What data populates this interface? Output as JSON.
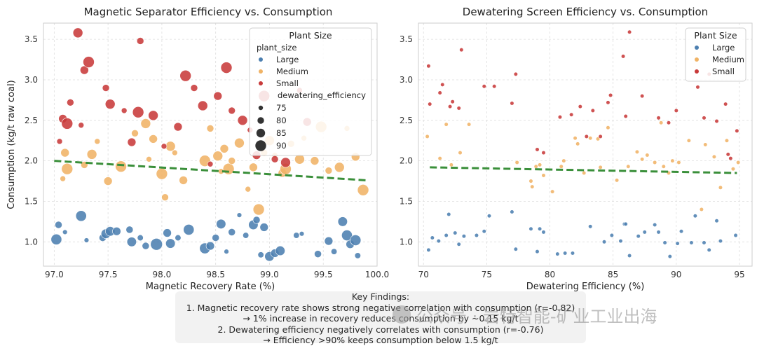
{
  "chart_data": [
    {
      "type": "scatter",
      "title": "Magnetic Separator Efficiency vs. Consumption",
      "xlabel": "Magnetic Recovery Rate (%)",
      "ylabel": "Consumption (kg/t raw coal)",
      "xlim": [
        96.9,
        100.0
      ],
      "ylim": [
        0.7,
        3.7
      ],
      "xticks": [
        "97.0",
        "97.5",
        "98.0",
        "98.5",
        "99.0",
        "99.5",
        "100.0"
      ],
      "yticks": [
        "1.0",
        "1.5",
        "2.0",
        "2.5",
        "3.0",
        "3.5"
      ],
      "grid": true,
      "trendline": {
        "x": [
          97.0,
          99.9
        ],
        "y": [
          2.0,
          1.76
        ],
        "color": "#3a8f3a"
      },
      "legend": {
        "title": "Plant Size",
        "hue_title": "plant_size",
        "hue_items": [
          "Large",
          "Medium",
          "Small"
        ],
        "size_title": "dewatering_efficiency",
        "size_items": [
          "75",
          "80",
          "85",
          "90"
        ],
        "placement": "upper-right"
      },
      "series": [
        {
          "name": "Large",
          "color": "#4c7fb0",
          "x": [
            97.02,
            97.04,
            97.1,
            97.25,
            97.3,
            97.45,
            97.48,
            97.52,
            97.58,
            97.7,
            97.72,
            97.8,
            97.85,
            97.95,
            98.05,
            98.08,
            98.15,
            98.25,
            98.4,
            98.45,
            98.5,
            98.55,
            98.6,
            98.65,
            98.72,
            98.78,
            98.85,
            98.88,
            98.92,
            98.95,
            99.0,
            99.05,
            99.1,
            99.25,
            99.3,
            99.45,
            99.55,
            99.6,
            99.68,
            99.72,
            99.75,
            99.8,
            99.82
          ],
          "y": [
            1.03,
            1.21,
            1.12,
            1.32,
            1.02,
            1.05,
            1.1,
            1.13,
            1.13,
            1.15,
            1.0,
            1.05,
            0.95,
            0.97,
            1.11,
            0.98,
            1.05,
            1.15,
            0.92,
            0.95,
            1.05,
            1.22,
            0.88,
            1.12,
            1.33,
            1.08,
            1.21,
            1.27,
            0.84,
            1.18,
            0.82,
            0.86,
            0.89,
            1.08,
            1.1,
            0.85,
            1.01,
            0.88,
            1.25,
            1.08,
            0.97,
            1.02,
            0.83
          ],
          "size": [
            86,
            80,
            76,
            86,
            76,
            80,
            84,
            84,
            82,
            80,
            84,
            78,
            80,
            88,
            82,
            84,
            78,
            86,
            86,
            82,
            80,
            84,
            76,
            80,
            76,
            78,
            84,
            80,
            78,
            82,
            84,
            82,
            84,
            78,
            76,
            80,
            82,
            78,
            84,
            86,
            82,
            86,
            78
          ]
        },
        {
          "name": "Medium",
          "color": "#f0b366",
          "x": [
            97.08,
            97.1,
            97.12,
            97.28,
            97.35,
            97.4,
            97.5,
            97.62,
            97.75,
            97.85,
            97.88,
            97.92,
            98.0,
            98.03,
            98.08,
            98.12,
            98.2,
            98.4,
            98.45,
            98.52,
            98.55,
            98.58,
            98.62,
            98.65,
            98.72,
            98.8,
            98.85,
            98.9,
            98.95,
            99.0,
            99.05,
            99.12,
            99.15,
            99.2,
            99.28,
            99.32,
            99.42,
            99.48,
            99.55,
            99.65,
            99.72,
            99.8,
            99.87
          ],
          "y": [
            1.78,
            2.1,
            1.9,
            1.95,
            2.08,
            2.24,
            1.75,
            1.93,
            2.34,
            2.46,
            2.02,
            2.27,
            1.84,
            1.55,
            2.18,
            2.1,
            1.76,
            2.0,
            2.4,
            2.06,
            1.87,
            2.15,
            1.9,
            2.0,
            2.22,
            1.65,
            1.92,
            1.4,
            2.1,
            2.25,
            2.07,
            1.85,
            1.9,
            2.21,
            2.02,
            2.28,
            2.0,
            2.42,
            1.88,
            1.92,
            2.4,
            2.05,
            1.64
          ]
        },
        {
          "name": "Small",
          "color": "#c83a3a",
          "x": [
            97.05,
            97.08,
            97.12,
            97.15,
            97.22,
            97.25,
            97.28,
            97.32,
            97.48,
            97.52,
            97.65,
            97.72,
            97.78,
            97.8,
            97.92,
            98.02,
            98.15,
            98.22,
            98.3,
            98.38,
            98.45,
            98.52,
            98.6,
            98.65,
            98.75,
            98.82,
            98.88,
            98.95,
            99.05,
            99.15,
            99.28,
            99.35
          ],
          "y": [
            2.24,
            2.52,
            2.46,
            2.72,
            3.58,
            2.44,
            3.12,
            3.22,
            2.9,
            2.7,
            2.62,
            2.23,
            2.6,
            3.48,
            2.56,
            2.18,
            2.42,
            3.05,
            2.9,
            2.68,
            1.96,
            2.8,
            3.15,
            2.62,
            2.5,
            2.38,
            2.07,
            2.8,
            2.02,
            1.98,
            2.87,
            2.48
          ]
        }
      ]
    },
    {
      "type": "scatter",
      "title": "Dewatering Screen Efficiency vs. Consumption",
      "xlabel": "Dewatering Efficiency (%)",
      "ylabel": "",
      "xlim": [
        69.6,
        96.0
      ],
      "ylim": [
        0.7,
        3.7
      ],
      "xticks": [
        "70",
        "75",
        "80",
        "85",
        "90",
        "95"
      ],
      "yticks": [
        "1.0",
        "1.5",
        "2.0",
        "2.5",
        "3.0",
        "3.5"
      ],
      "grid": true,
      "trendline": {
        "x": [
          70.5,
          94.8
        ],
        "y": [
          1.92,
          1.85
        ],
        "color": "#3a8f3a"
      },
      "legend": {
        "title": "Plant Size",
        "hue_items": [
          "Large",
          "Medium",
          "Small"
        ],
        "placement": "upper-right"
      },
      "series": [
        {
          "name": "Large",
          "color": "#4c7fb0",
          "x": [
            70.4,
            70.7,
            71.2,
            71.8,
            72.0,
            72.5,
            72.8,
            73.2,
            74.2,
            74.8,
            75.2,
            77.0,
            77.3,
            78.5,
            79.0,
            79.2,
            79.5,
            80.6,
            81.2,
            81.8,
            83.2,
            84.3,
            84.9,
            85.6,
            85.9,
            86.0,
            86.3,
            87.0,
            87.5,
            88.3,
            88.6,
            89.1,
            89.5,
            90.1,
            90.4,
            91.2,
            91.5,
            92.2,
            92.6,
            93.2,
            93.5,
            94.7
          ],
          "y": [
            0.9,
            1.05,
            1.01,
            1.08,
            1.34,
            1.11,
            0.97,
            1.07,
            1.08,
            1.13,
            1.32,
            1.37,
            0.91,
            1.16,
            0.88,
            1.16,
            1.12,
            0.85,
            0.86,
            0.86,
            1.19,
            1.0,
            1.08,
            1.01,
            1.22,
            1.22,
            0.83,
            1.07,
            1.12,
            1.21,
            1.12,
            0.99,
            0.82,
            0.98,
            1.13,
            0.99,
            1.32,
            0.99,
            0.9,
            1.26,
            1.01,
            1.08
          ]
        },
        {
          "name": "Medium",
          "color": "#f0b366",
          "x": [
            70.3,
            71.3,
            71.8,
            72.2,
            72.9,
            73.6,
            77.4,
            78.5,
            78.6,
            78.9,
            79.2,
            79.5,
            80.2,
            80.9,
            81.1,
            82.0,
            82.2,
            82.7,
            83.2,
            83.8,
            84.0,
            84.6,
            85.3,
            86.2,
            86.9,
            87.3,
            87.7,
            88.3,
            88.8,
            89.0,
            89.4,
            89.7,
            90.2,
            91.0,
            92.0,
            92.3,
            93.0,
            93.5,
            94.0,
            94.5,
            94.9
          ],
          "y": [
            2.3,
            2.03,
            2.45,
            1.95,
            2.1,
            2.45,
            1.98,
            1.75,
            1.68,
            1.93,
            1.95,
            1.82,
            1.62,
            1.93,
            2.0,
            2.28,
            2.21,
            1.85,
            2.28,
            2.27,
            1.92,
            2.41,
            1.76,
            1.93,
            2.11,
            2.02,
            2.07,
            1.98,
            2.47,
            1.93,
            1.85,
            2.0,
            1.98,
            2.25,
            1.4,
            2.2,
            2.05,
            1.67,
            2.25,
            1.9,
            1.98
          ]
        },
        {
          "name": "Small",
          "color": "#c83a3a",
          "x": [
            70.4,
            70.5,
            71.3,
            71.5,
            72.1,
            72.3,
            72.8,
            73.0,
            74.8,
            75.6,
            77.0,
            77.3,
            79.0,
            79.5,
            80.8,
            81.7,
            82.4,
            82.9,
            83.4,
            84.0,
            84.6,
            84.8,
            85.8,
            86.0,
            86.3,
            87.3,
            88.6,
            89.4,
            90.0,
            91.7,
            92.2,
            92.6,
            93.2,
            93.9,
            94.1,
            94.3,
            94.8
          ],
          "y": [
            3.17,
            2.7,
            2.84,
            2.94,
            2.67,
            2.73,
            2.65,
            3.37,
            2.92,
            2.92,
            2.71,
            3.07,
            2.14,
            2.1,
            2.54,
            2.57,
            2.67,
            2.3,
            2.62,
            2.3,
            2.72,
            2.81,
            3.29,
            2.55,
            3.59,
            2.8,
            2.53,
            2.47,
            2.62,
            2.91,
            2.53,
            3.07,
            2.49,
            2.7,
            2.08,
            2.03,
            2.37
          ]
        }
      ]
    }
  ],
  "findings": {
    "heading": "Key Findings:",
    "line1": "1. Magnetic recovery rate shows strong negative correlation with consumption (r=-0.82)",
    "line2": "→ 1% increase in recovery reduces consumption by ~0.15 kg/t",
    "line3": "2. Dewatering efficiency negatively correlates with consumption (r=-0.76)",
    "line4": "→ Efficiency >90% keeps consumption below 1.5 kg/t"
  },
  "watermark": {
    "text": "公众号 · 岩特智能-矿业工业出海"
  }
}
